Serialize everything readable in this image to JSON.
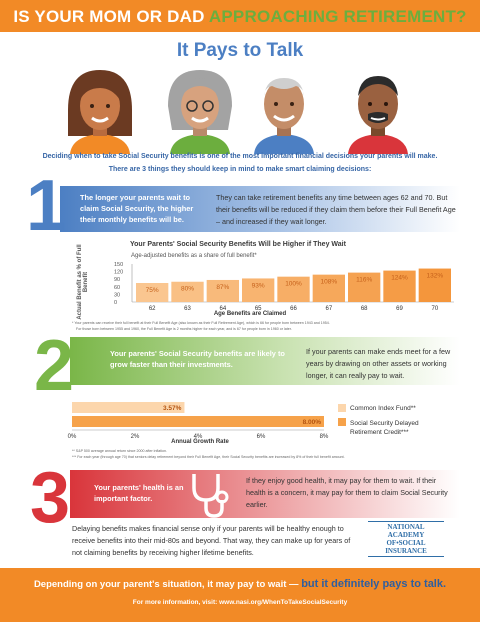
{
  "header": {
    "title_part1": "IS YOUR MOM OR DAD",
    "title_part2": "APPROACHING RETIREMENT?",
    "subtitle": "It Pays to Talk"
  },
  "intro": {
    "line1": "Deciding when to take Social Security benefits is one of the most important financial decisions your parents will make.",
    "line2": "There are 3 things they should keep in mind to make smart claiming decisions:"
  },
  "section1": {
    "number": "1",
    "band_text": "The longer your parents wait to claim Social Security, the higher their monthly benefits will be.",
    "side_text": "They can take retirement benefits any time between ages 62 and 70. But their benefits will be reduced if they claim them before their Full Benefit Age – and increased if they wait longer.",
    "footnote1": "* Your parents can receive their full benefit at their Full Benefit Age (also known as their Full Retirement Age), which is 66 for people born between 1943 and 1954.",
    "footnote2": "For those born between 1955 and 1960, the Full Benefit Age is 2 months higher for each year, and is 67 for people born in 1960 or later."
  },
  "section2": {
    "number": "2",
    "band_text": "Your parents' Social Security benefits are likely to grow faster than their investments.",
    "side_text": "If your parents can make ends meet for a few years by drawing on other assets or working longer, it can really pay to wait.",
    "footnote1": "** S&P 500 average annual return since 2000 after inflation.",
    "footnote2": "*** For each year (through age 70) that seniors delay retirement beyond their Full Benefit Age, their Social Security benefits are increased by 8% of their full benefit amount."
  },
  "section3": {
    "number": "3",
    "band_text": "Your parents' health is an important factor.",
    "side_text": "If they enjoy good health, it may pay for them to wait. If their health is a concern, it may pay for them to claim Social Security earlier.",
    "body_text": "Delaying benefits makes financial sense only if your parents will be healthy enough to receive benefits into their mid-80s and beyond. That way, they can make up for years of not claiming benefits by receiving higher lifetime benefits."
  },
  "logo": {
    "line1": "NATIONAL",
    "line2": "ACADEMY",
    "line3": "OF•SOCIAL",
    "line4": "INSURANCE"
  },
  "footer": {
    "text": "Depending on your parent's situation, it may pay to wait —",
    "emph": "but it definitely pays to talk.",
    "link": "For more information, visit: www.nasi.org/WhenToTakeSocialSecurity"
  },
  "colors": {
    "orange": "#f28a26",
    "blue": "#4c7fc3",
    "green": "#7ab648",
    "red": "#d9353b",
    "bar_light": "#fcd6ac",
    "bar_dark": "#f6a24a"
  },
  "chart_data": [
    {
      "type": "bar",
      "title": "Your Parents' Social Security Benefits Will be Higher if They Wait",
      "subtitle": "Age-adjusted benefits as a share of full benefit*",
      "xlabel": "Age Benefits are Claimed",
      "ylabel": "Actual Benefit as % of Full Benefit",
      "categories": [
        "62",
        "63",
        "64",
        "65",
        "66",
        "67",
        "68",
        "69",
        "70"
      ],
      "values": [
        75,
        80,
        87,
        93,
        100,
        108,
        116,
        124,
        132
      ],
      "labels": [
        "75%",
        "80%",
        "87%",
        "93%",
        "100%",
        "108%",
        "116%",
        "124%",
        "132%"
      ],
      "yticks": [
        "150",
        "120",
        "90",
        "60",
        "30",
        "0"
      ],
      "ylim": [
        0,
        150
      ]
    },
    {
      "type": "bar",
      "orientation": "horizontal",
      "xlabel": "Annual Growth Rate",
      "categories": [
        "Common Index Fund**",
        "Social Security Delayed Retirement Credit***"
      ],
      "values": [
        3.57,
        8.0
      ],
      "labels": [
        "3.57%",
        "8.00%"
      ],
      "xticks": [
        "0%",
        "2%",
        "4%",
        "6%",
        "8%"
      ],
      "xlim": [
        0,
        8
      ]
    }
  ]
}
